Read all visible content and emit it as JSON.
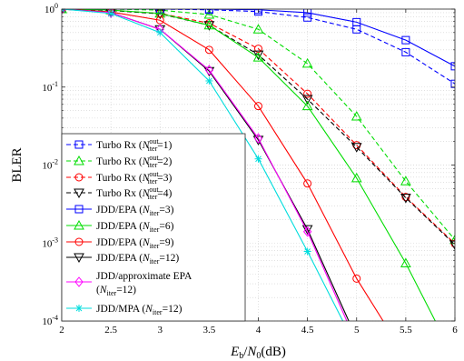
{
  "chart_data": {
    "type": "line",
    "xlabel": "E_b/N_0(dB)",
    "ylabel": "BLER",
    "xlim": [
      2,
      6
    ],
    "ylim": [
      0.0001,
      1
    ],
    "y_scale": "log",
    "grid": true,
    "legend_placement": "bottom-left",
    "x_ticks": [
      "2",
      "2.5",
      "3",
      "3.5",
      "4",
      "4.5",
      "5",
      "5.5",
      "6"
    ],
    "y_ticks": [
      {
        "value": 0.0001,
        "mantissa": "10",
        "exp": "-4"
      },
      {
        "value": 0.001,
        "mantissa": "10",
        "exp": "-3"
      },
      {
        "value": 0.01,
        "mantissa": "10",
        "exp": "-2"
      },
      {
        "value": 0.1,
        "mantissa": "10",
        "exp": "-1"
      },
      {
        "value": 1,
        "mantissa": "10",
        "exp": "0"
      }
    ],
    "series": [
      {
        "name": "Turbo Rx (N_iter^out=1)",
        "color": "#0000ff",
        "dash": "dashed",
        "marker": "square",
        "x": [
          2,
          2.5,
          3,
          3.5,
          4,
          4.5,
          5,
          5.5,
          6
        ],
        "y": [
          1,
          1,
          1,
          0.98,
          0.93,
          0.78,
          0.55,
          0.28,
          0.11
        ]
      },
      {
        "name": "Turbo Rx (N_iter^out=2)",
        "color": "#00dd00",
        "dash": "dashed",
        "marker": "triangle",
        "x": [
          2,
          2.5,
          3,
          3.5,
          4,
          4.5,
          5,
          5.5,
          6
        ],
        "y": [
          1,
          1,
          0.97,
          0.85,
          0.55,
          0.2,
          0.042,
          0.0062,
          0.0011
        ]
      },
      {
        "name": "Turbo Rx (N_iter^out=3)",
        "color": "#ff0000",
        "dash": "dashed",
        "marker": "circle",
        "x": [
          2,
          2.5,
          3,
          3.5,
          4,
          4.5,
          5,
          5.5,
          6
        ],
        "y": [
          1,
          0.97,
          0.88,
          0.66,
          0.31,
          0.082,
          0.018,
          0.0039,
          0.00098
        ]
      },
      {
        "name": "Turbo Rx (N_iter^out=4)",
        "color": "#000000",
        "dash": "dashed",
        "marker": "triangle-down",
        "x": [
          2,
          2.5,
          3,
          3.5,
          4,
          4.5,
          5,
          5.5,
          6
        ],
        "y": [
          1,
          0.96,
          0.87,
          0.62,
          0.26,
          0.07,
          0.017,
          0.0038,
          0.00095
        ]
      },
      {
        "name": "JDD/EPA (N_iter=3)",
        "color": "#0000ff",
        "dash": "solid",
        "marker": "square",
        "x": [
          2,
          2.5,
          3,
          3.5,
          4,
          4.5,
          5,
          5.5,
          6
        ],
        "y": [
          1,
          1,
          1,
          1,
          0.98,
          0.9,
          0.68,
          0.4,
          0.185
        ]
      },
      {
        "name": "JDD/EPA (N_iter=6)",
        "color": "#00dd00",
        "dash": "solid",
        "marker": "triangle",
        "x": [
          2,
          2.5,
          3,
          3.5,
          4,
          4.5,
          5,
          5.5,
          5.8
        ],
        "y": [
          1,
          0.97,
          0.88,
          0.62,
          0.24,
          0.057,
          0.0068,
          0.00055,
          0.0001
        ]
      },
      {
        "name": "JDD/EPA (N_iter=9)",
        "color": "#ff0000",
        "dash": "solid",
        "marker": "circle",
        "x": [
          2,
          2.5,
          3,
          3.5,
          4,
          4.5,
          5,
          5.27
        ],
        "y": [
          1,
          0.92,
          0.72,
          0.3,
          0.057,
          0.0058,
          0.00035,
          0.0001
        ]
      },
      {
        "name": "JDD/EPA (N_iter=12)",
        "color": "#000000",
        "dash": "solid",
        "marker": "triangle-down",
        "x": [
          2,
          2.5,
          3,
          3.5,
          4,
          4.5,
          4.92
        ],
        "y": [
          1,
          0.9,
          0.55,
          0.16,
          0.021,
          0.0015,
          0.0001
        ]
      },
      {
        "name": "JDD/approximate EPA (N_iter=12)",
        "color": "#ff00ff",
        "dash": "solid",
        "marker": "diamond",
        "x": [
          2,
          2.5,
          3,
          3.5,
          4,
          4.5,
          4.9
        ],
        "y": [
          1,
          0.9,
          0.55,
          0.165,
          0.022,
          0.0014,
          0.0001
        ]
      },
      {
        "name": "JDD/MPA (N_iter=12)",
        "color": "#00dddd",
        "dash": "solid",
        "marker": "asterisk",
        "x": [
          2,
          2.5,
          3,
          3.5,
          4,
          4.5,
          4.86
        ],
        "y": [
          1,
          0.88,
          0.5,
          0.12,
          0.012,
          0.00078,
          0.0001
        ]
      }
    ],
    "legend": [
      {
        "label": "Turbo Rx (N_iter^out=1)",
        "parts": [
          {
            "t": "Turbo Rx ("
          },
          {
            "t": "N",
            "i": 1
          },
          {
            "t": "out",
            "sup": 1
          },
          {
            "t": "iter",
            "sub": 1
          },
          {
            "t": "=1)"
          }
        ]
      },
      {
        "label": "Turbo Rx (N_iter^out=2)",
        "parts": [
          {
            "t": "Turbo Rx ("
          },
          {
            "t": "N",
            "i": 1
          },
          {
            "t": "out",
            "sup": 1
          },
          {
            "t": "iter",
            "sub": 1
          },
          {
            "t": "=2)"
          }
        ]
      },
      {
        "label": "Turbo Rx (N_iter^out=3)",
        "parts": [
          {
            "t": "Turbo Rx ("
          },
          {
            "t": "N",
            "i": 1
          },
          {
            "t": "out",
            "sup": 1
          },
          {
            "t": "iter",
            "sub": 1
          },
          {
            "t": "=3)"
          }
        ]
      },
      {
        "label": "Turbo Rx (N_iter^out=4)",
        "parts": [
          {
            "t": "Turbo Rx ("
          },
          {
            "t": "N",
            "i": 1
          },
          {
            "t": "out",
            "sup": 1
          },
          {
            "t": "iter",
            "sub": 1
          },
          {
            "t": "=4)"
          }
        ]
      },
      {
        "label": "JDD/EPA (N_iter=3)",
        "parts": [
          {
            "t": "JDD/EPA ("
          },
          {
            "t": "N",
            "i": 1
          },
          {
            "t": "iter",
            "sub": 1
          },
          {
            "t": "=3)"
          }
        ]
      },
      {
        "label": "JDD/EPA (N_iter=6)",
        "parts": [
          {
            "t": "JDD/EPA ("
          },
          {
            "t": "N",
            "i": 1
          },
          {
            "t": "iter",
            "sub": 1
          },
          {
            "t": "=6)"
          }
        ]
      },
      {
        "label": "JDD/EPA (N_iter=9)",
        "parts": [
          {
            "t": "JDD/EPA ("
          },
          {
            "t": "N",
            "i": 1
          },
          {
            "t": "iter",
            "sub": 1
          },
          {
            "t": "=9)"
          }
        ]
      },
      {
        "label": "JDD/EPA (N_iter=12)",
        "parts": [
          {
            "t": "JDD/EPA ("
          },
          {
            "t": "N",
            "i": 1
          },
          {
            "t": "iter",
            "sub": 1
          },
          {
            "t": "=12)"
          }
        ]
      },
      {
        "label": "JDD/approximate EPA (N_iter=12)",
        "line1": [
          {
            "t": "JDD/approximate EPA"
          }
        ],
        "parts": [
          {
            "t": "("
          },
          {
            "t": "N",
            "i": 1
          },
          {
            "t": "iter",
            "sub": 1
          },
          {
            "t": "=12)"
          }
        ]
      },
      {
        "label": "JDD/MPA (N_iter=12)",
        "parts": [
          {
            "t": "JDD/MPA ("
          },
          {
            "t": "N",
            "i": 1
          },
          {
            "t": "iter",
            "sub": 1
          },
          {
            "t": "=12)"
          }
        ]
      }
    ]
  }
}
